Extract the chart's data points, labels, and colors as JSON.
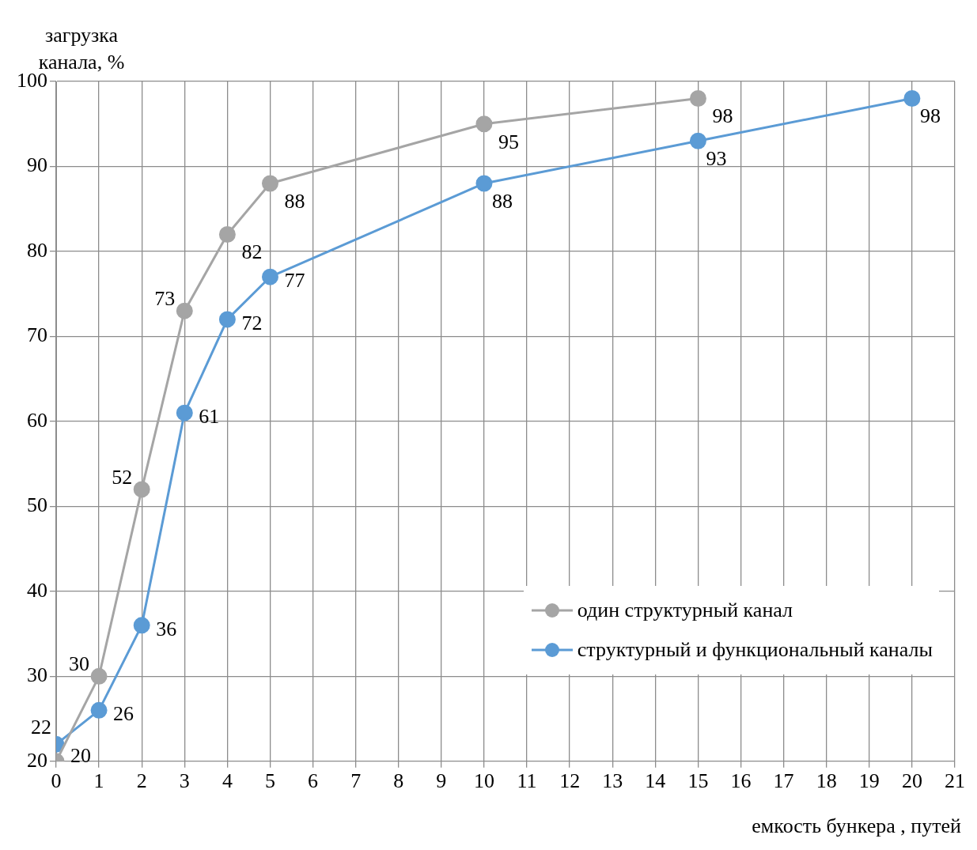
{
  "chart_data": {
    "type": "line",
    "xlabel": "емкость бункера , путей",
    "ylabel": "загрузка канала, %",
    "xlim": [
      0,
      21
    ],
    "xticks": [
      0,
      1,
      2,
      3,
      4,
      5,
      6,
      7,
      8,
      9,
      10,
      11,
      12,
      13,
      14,
      15,
      16,
      17,
      18,
      19,
      20,
      21
    ],
    "ylim": [
      20,
      100
    ],
    "yticks": [
      20,
      30,
      40,
      50,
      60,
      70,
      80,
      90,
      100
    ],
    "grid": true,
    "legend": "bottom right",
    "marker": "circle",
    "line_style": "solid",
    "data_labels": true,
    "series": [
      {
        "name": "один структурный канал",
        "color": "#a5a5a5",
        "x": [
          0,
          1,
          2,
          3,
          4,
          5,
          10,
          15
        ],
        "values": [
          20,
          30,
          52,
          73,
          82,
          88,
          95,
          98
        ]
      },
      {
        "name": "структурный и функциональный каналы",
        "color": "#5b9bd5",
        "x": [
          0,
          1,
          2,
          3,
          4,
          5,
          10,
          15,
          20
        ],
        "values": [
          22,
          26,
          36,
          61,
          72,
          77,
          88,
          93,
          98
        ]
      }
    ]
  }
}
